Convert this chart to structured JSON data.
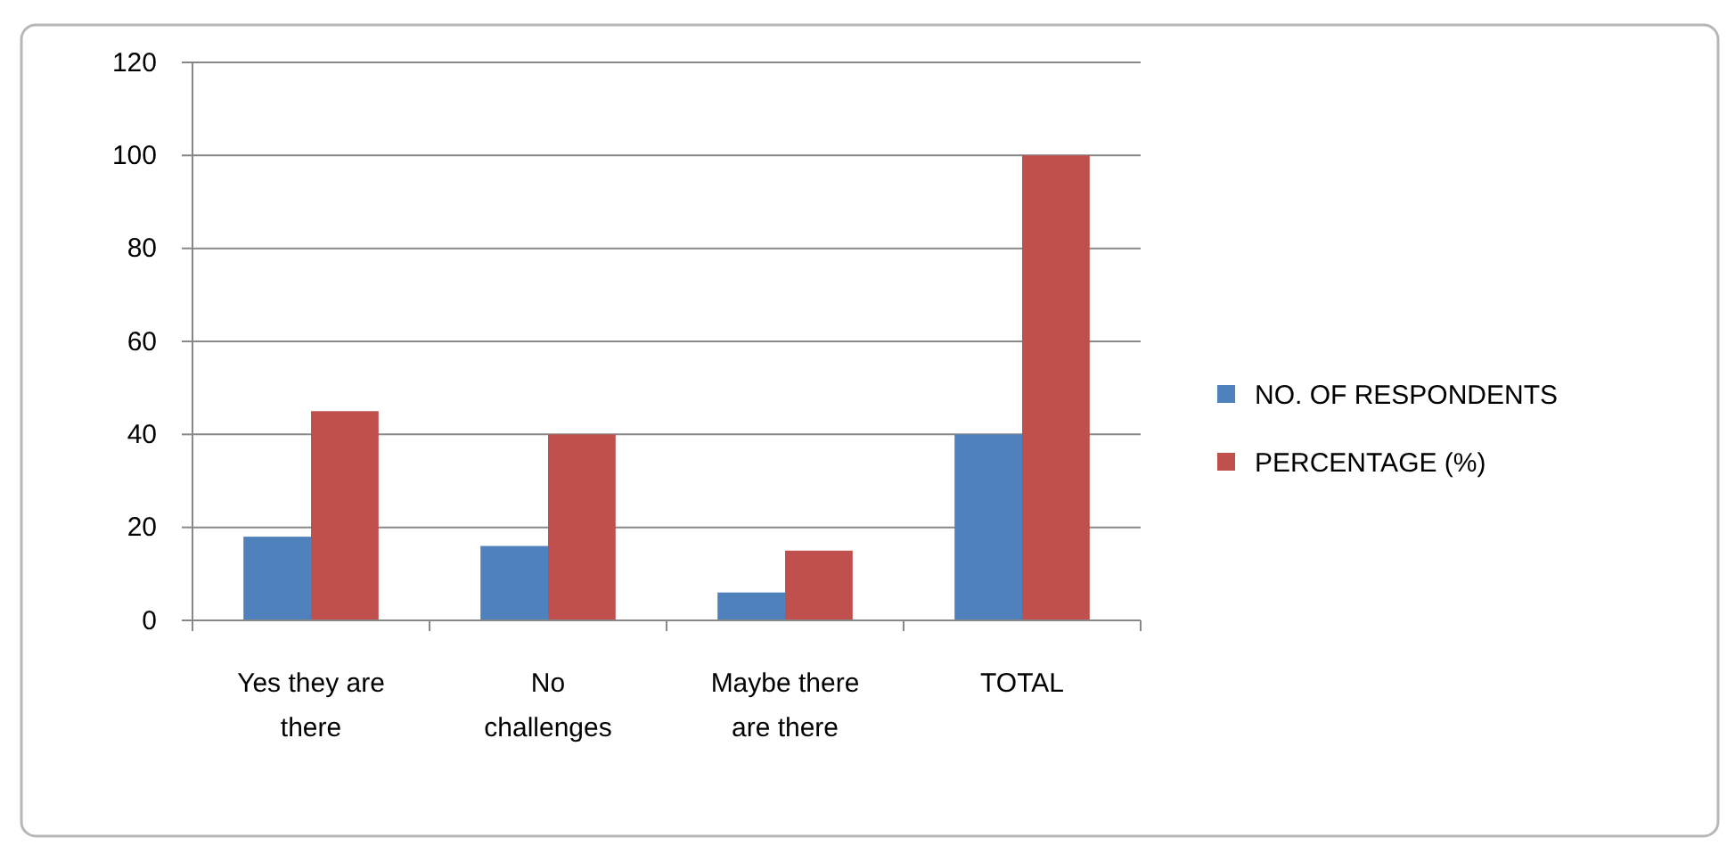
{
  "chart_data": {
    "type": "bar",
    "categories": [
      "Yes they are there",
      "No challenges",
      "Maybe there are there",
      "TOTAL"
    ],
    "series": [
      {
        "name": "NO. OF RESPONDENTS",
        "color": "#4f81bd",
        "values": [
          18,
          16,
          6,
          40
        ]
      },
      {
        "name": "PERCENTAGE (%)",
        "color": "#c0504d",
        "values": [
          45,
          40,
          15,
          100
        ]
      }
    ],
    "ylim": [
      0,
      120
    ],
    "yticks": [
      0,
      20,
      40,
      60,
      80,
      100,
      120
    ],
    "grid": "y",
    "legend": "right"
  }
}
